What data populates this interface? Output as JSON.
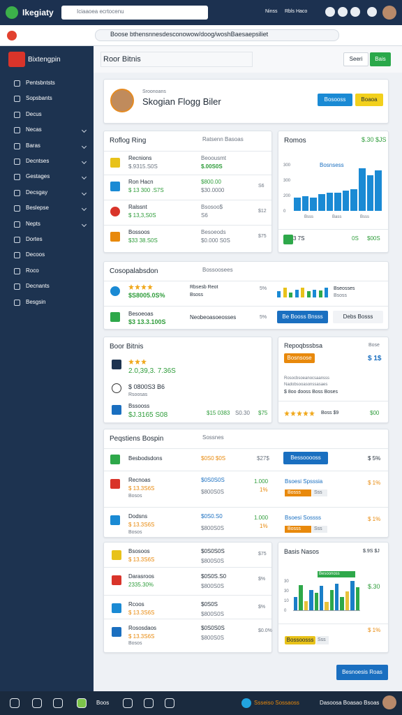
{
  "browser": {
    "tab_title": "Ikegiaty",
    "search": "Iciaaoea ecrtocenu",
    "user": "Ninss",
    "user_status": "Rbls Haco",
    "url": "Boose bthensnnesdesconowow/doog/woshBaesaepsiliet"
  },
  "sidebar": {
    "title": "Bixtengpin",
    "items": [
      "Pentsbntsts",
      "Sopsbants",
      "Decus",
      "Necas",
      "Baras",
      "Decntses",
      "Gestages",
      "Decsgay",
      "Beslepse",
      "Nepts",
      "Dortes",
      "Decoos",
      "Roco",
      "Decnants",
      "Besgsin"
    ]
  },
  "header": {
    "title": "Roor Bitnis",
    "buttons": [
      "Seeri",
      "Bais"
    ]
  },
  "profile": {
    "caption": "Sroonoans",
    "name": "Skogian Flogg Biler",
    "buttons": [
      "Bosooss",
      "Boaoa"
    ]
  },
  "accounts": {
    "title": "Roflog Ring",
    "subtitle": "Ratsenn Basoas",
    "rows": [
      {
        "name": "Recnions",
        "detail": "$.9315.S0S",
        "label": "Beoousmt",
        "amount": "$.00S0S"
      },
      {
        "name": "Ron Hacn",
        "detail": "$ 13 300 .S7S",
        "label": "$800.00",
        "amount": "$30.0000",
        "side": "S6"
      },
      {
        "name": "Ralssnt",
        "detail": "$ 13,3,S0S",
        "label": "Bsosoo$",
        "amount": "S6",
        "side": "$12"
      },
      {
        "name": "Bossoos",
        "detail": "$33 38.S0S",
        "label": "Besoeods",
        "amount": "$0.000 S0S",
        "side": "$75"
      }
    ]
  },
  "overview": {
    "title": "Romos",
    "value": "$.30 $JS",
    "legend": "Bosnsess",
    "yticks": [
      "300",
      "300",
      "200",
      "0"
    ],
    "xlabels": [
      "Bsss",
      "Bass",
      "Bsss"
    ],
    "values": [
      16,
      18,
      16,
      21,
      22,
      22,
      25,
      27,
      52,
      44,
      50
    ],
    "ylim": [
      0,
      60
    ],
    "footer": [
      "3 7S",
      "0S",
      "$00S"
    ]
  },
  "comparison": {
    "title": "Cosopalabsdon",
    "subtitle": "Bossoosees",
    "rows": [
      {
        "amount": "$S8005.0S%",
        "label": "Rbsesb Reot",
        "note": "Bsoss",
        "pct": "5%",
        "chart": [
          8,
          12,
          6,
          10,
          12,
          8,
          10,
          9,
          12
        ],
        "chart_label": "Bseosses",
        "chart_note": "Bsoss"
      },
      {
        "name": "Besoeoas",
        "amount": "$3 13.3.100S",
        "label": "Neobeoasoeosses",
        "pct": "5%",
        "buttons": [
          "Be Booss Bnsss",
          "Debs Bosss"
        ]
      }
    ]
  },
  "recent": {
    "title": "Boor Bitnis",
    "rows": [
      {
        "amount": "2.0,39,3. 7.36S"
      },
      {
        "name": "$ 0800S3 B6",
        "detail": "Rsoosas"
      },
      {
        "name": "Bssooss",
        "amount": "$J.3165 S08",
        "value": "$15 0383",
        "note": "S0.30",
        "side": "$75"
      }
    ]
  },
  "report": {
    "title": "Repoqbssbsa",
    "link": "Bose",
    "button": "Bosnsose",
    "value": "$ 1$",
    "lines": [
      "Rosocbsoeanocsaansss",
      "Nadobsooasonssasaes"
    ],
    "summary": "$ 8oo dooss  Boss  Boses",
    "rating_label": "Boss $9",
    "rating_value": "$00"
  },
  "projects": {
    "title": "Peqstiens Bospin",
    "subtitle": "Sossnes",
    "rows": [
      {
        "name": "Besbodsdons",
        "amount": "$0S0 $0S",
        "note": "$27$",
        "button": "Bessooooss",
        "pct": "$ 5%"
      },
      {
        "name": "Recnoas",
        "detail": "$ 13.3S6S",
        "sub": "Bosos",
        "amount": "$0S0S0S",
        "amount2": "$800S0S",
        "count": "1.000",
        "rate": "1%",
        "tag_title": "Bsoesi Spsssia",
        "tags": [
          "Bosss",
          "Sss"
        ],
        "pct": "$ 1%"
      },
      {
        "name": "Dodsns",
        "detail": "$ 13.3S6S",
        "sub": "Bosos",
        "amount": "$0S0.S0",
        "amount2": "$800S0S",
        "count": "1.000",
        "rate": "1%",
        "tag_title": "Bsoesi Sossss",
        "tags": [
          "Bosss",
          "Sss"
        ],
        "pct": "$ 1%"
      }
    ]
  },
  "transactions": {
    "rows": [
      {
        "name": "Bsosoos",
        "detail": "$ 13.3S6S",
        "amount": "$0S0S0S",
        "amount2": "$800S0S",
        "side": "$75"
      },
      {
        "name": "Darasroos",
        "detail": "2335.30%",
        "amount": "$0S0S.S0",
        "amount2": "$800S0S",
        "side": "$%"
      },
      {
        "name": "Rcoos",
        "detail": "$ 13.3S6S",
        "amount": "$0S0S",
        "amount2": "$800S0S",
        "side": "$%"
      },
      {
        "name": "Rososdaos",
        "detail": "$ 13.3S6S",
        "sub": "Bosos",
        "amount": "$0S0S0S",
        "amount2": "$800S0S",
        "side": "$0.0%"
      }
    ]
  },
  "stats": {
    "title": "Basis Nasos",
    "value": "$.9S $J",
    "legend": "Besoonoss",
    "value2": "$.30",
    "yticks": [
      "30",
      "30",
      "10",
      "0"
    ],
    "values": [
      20,
      38,
      14,
      30,
      26,
      36,
      12,
      30,
      40,
      20,
      28,
      44,
      34
    ],
    "ylim": [
      0,
      50
    ],
    "colors": [
      "#1a7fc8",
      "#2ea84a",
      "#e8c23a",
      "#1a7fc8",
      "#2ea84a",
      "#1a7fc8",
      "#e8c23a",
      "#2ea84a",
      "#1a7fc8",
      "#2ea84a",
      "#e8c23a",
      "#1a7fc8",
      "#2ea84a"
    ],
    "button": "Bossoosss",
    "tag": "Sss",
    "pct": "$ 1%"
  },
  "footer": {
    "button": "Besnoesis Roas"
  },
  "taskbar": {
    "items": [
      "Boos",
      "Ssseiso Sossaoss",
      "Dasoosa Boasao Bsoas"
    ]
  }
}
